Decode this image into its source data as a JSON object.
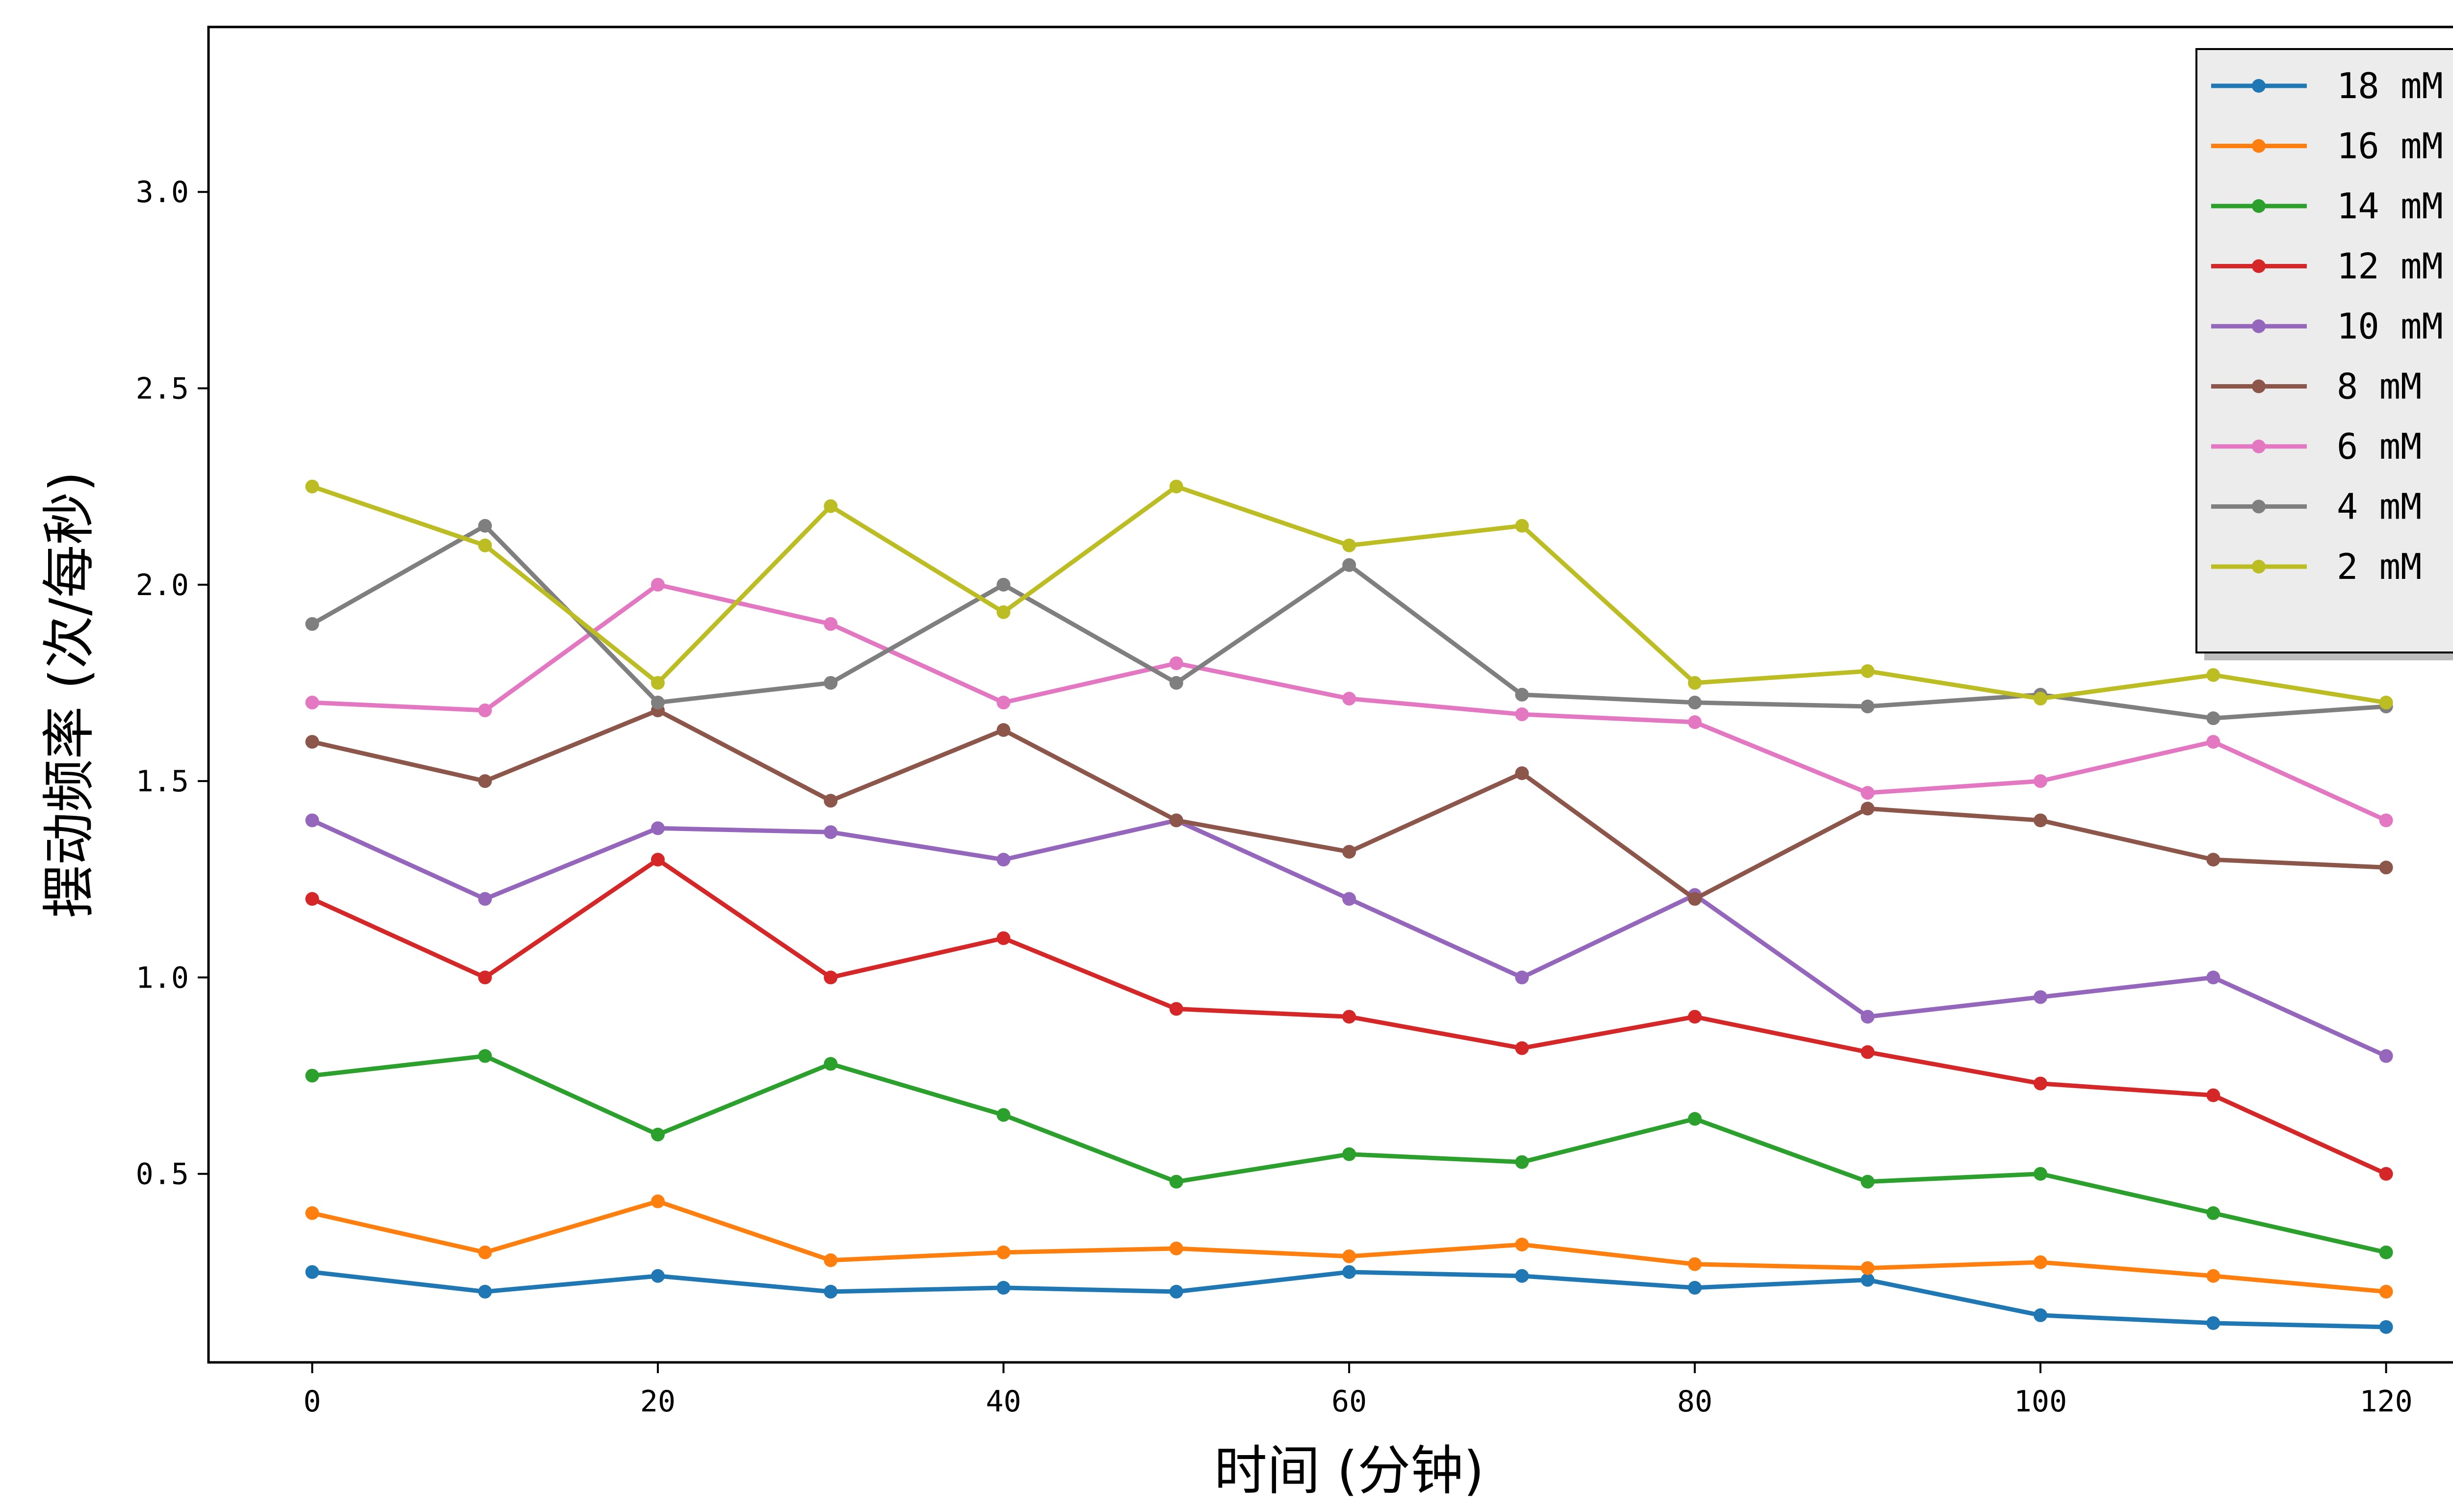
{
  "chart_data": {
    "type": "line",
    "title": "",
    "xlabel": "时间 (分钟)",
    "ylabel": "摆动频率 (次/每秒)",
    "xlim": [
      -6,
      126
    ],
    "ylim": [
      0.02,
      3.42
    ],
    "x": [
      0,
      10,
      20,
      30,
      40,
      50,
      60,
      70,
      80,
      90,
      100,
      110,
      120
    ],
    "xticks": [
      0,
      20,
      40,
      60,
      80,
      100,
      120
    ],
    "yticks": [
      0.5,
      1.0,
      1.5,
      2.0,
      2.5,
      3.0
    ],
    "xtick_labels": [
      "0",
      "20",
      "40",
      "60",
      "80",
      "100",
      "120"
    ],
    "ytick_labels": [
      "0.5",
      "1.0",
      "1.5",
      "2.0",
      "2.5",
      "3.0"
    ],
    "grid": false,
    "legend_position": "top-right",
    "series": [
      {
        "name": "18 mM",
        "color": "#1f77b4",
        "values": [
          0.25,
          0.2,
          0.24,
          0.2,
          0.21,
          0.2,
          0.25,
          0.24,
          0.21,
          0.23,
          0.14,
          0.12,
          0.11
        ]
      },
      {
        "name": "16 mM",
        "color": "#ff7f0e",
        "values": [
          0.4,
          0.3,
          0.43,
          0.28,
          0.3,
          0.31,
          0.29,
          0.32,
          0.27,
          0.26,
          0.275,
          0.24,
          0.2
        ]
      },
      {
        "name": "14 mM",
        "color": "#2ca02c",
        "values": [
          0.75,
          0.8,
          0.6,
          0.78,
          0.65,
          0.48,
          0.55,
          0.53,
          0.64,
          0.48,
          0.5,
          0.4,
          0.3
        ]
      },
      {
        "name": "12 mM",
        "color": "#d62728",
        "values": [
          1.2,
          1.0,
          1.3,
          1.0,
          1.1,
          0.92,
          0.9,
          0.82,
          0.9,
          0.81,
          0.73,
          0.7,
          0.5
        ]
      },
      {
        "name": "10 mM",
        "color": "#9467bd",
        "values": [
          1.4,
          1.2,
          1.38,
          1.37,
          1.3,
          1.4,
          1.2,
          1.0,
          1.21,
          0.9,
          0.95,
          1.0,
          0.8
        ]
      },
      {
        "name": "8 mM",
        "color": "#8c564b",
        "values": [
          1.6,
          1.5,
          1.68,
          1.45,
          1.63,
          1.4,
          1.32,
          1.52,
          1.2,
          1.43,
          1.4,
          1.3,
          1.28
        ]
      },
      {
        "name": "6 mM",
        "color": "#e377c2",
        "values": [
          1.7,
          1.68,
          2.0,
          1.9,
          1.7,
          1.8,
          1.71,
          1.67,
          1.65,
          1.47,
          1.5,
          1.6,
          1.4
        ]
      },
      {
        "name": "4 mM",
        "color": "#7f7f7f",
        "values": [
          1.9,
          2.15,
          1.7,
          1.75,
          2.0,
          1.75,
          2.05,
          1.72,
          1.7,
          1.69,
          1.72,
          1.66,
          1.69
        ]
      },
      {
        "name": "2 mM",
        "color": "#bcbd22",
        "values": [
          2.25,
          2.1,
          1.75,
          2.2,
          1.93,
          2.25,
          2.1,
          2.15,
          1.75,
          1.78,
          1.71,
          1.77,
          1.7
        ]
      }
    ]
  }
}
